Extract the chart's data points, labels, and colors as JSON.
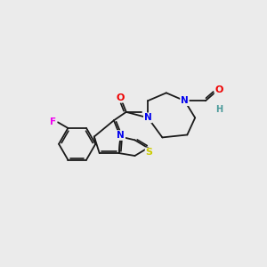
{
  "bg_color": "#ebebeb",
  "bond_color": "#1a1a1a",
  "atom_colors": {
    "F": "#ee00ee",
    "N": "#0000ee",
    "O": "#ee0000",
    "S": "#cccc00",
    "H": "#4a9a9a"
  },
  "figsize": [
    3.0,
    3.0
  ],
  "dpi": 100
}
